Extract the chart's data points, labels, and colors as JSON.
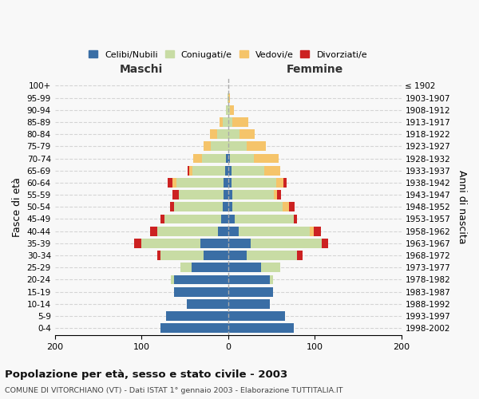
{
  "age_groups": [
    "100+",
    "95-99",
    "90-94",
    "85-89",
    "80-84",
    "75-79",
    "70-74",
    "65-69",
    "60-64",
    "55-59",
    "50-54",
    "45-49",
    "40-44",
    "35-39",
    "30-34",
    "25-29",
    "20-24",
    "15-19",
    "10-14",
    "5-9",
    "0-4"
  ],
  "birth_years": [
    "≤ 1902",
    "1903-1907",
    "1908-1912",
    "1913-1917",
    "1918-1922",
    "1923-1927",
    "1928-1932",
    "1933-1937",
    "1938-1942",
    "1943-1947",
    "1948-1952",
    "1953-1957",
    "1958-1962",
    "1963-1967",
    "1968-1972",
    "1973-1977",
    "1978-1982",
    "1983-1987",
    "1988-1992",
    "1993-1997",
    "1998-2002"
  ],
  "maschi_celibi": [
    0,
    0,
    0,
    0,
    0,
    0,
    2,
    3,
    5,
    5,
    6,
    8,
    12,
    32,
    28,
    42,
    62,
    62,
    48,
    72,
    78
  ],
  "maschi_coniugati": [
    0,
    1,
    2,
    6,
    13,
    20,
    28,
    38,
    55,
    52,
    56,
    65,
    70,
    68,
    50,
    13,
    4,
    0,
    0,
    0,
    0
  ],
  "maschi_vedovi": [
    0,
    0,
    0,
    4,
    8,
    8,
    10,
    4,
    4,
    0,
    0,
    0,
    0,
    0,
    0,
    0,
    0,
    0,
    0,
    0,
    0
  ],
  "maschi_divorziati": [
    0,
    0,
    0,
    0,
    0,
    0,
    0,
    2,
    6,
    7,
    5,
    5,
    8,
    8,
    4,
    0,
    0,
    0,
    0,
    0,
    0
  ],
  "femmine_nubili": [
    0,
    0,
    0,
    0,
    0,
    0,
    2,
    4,
    4,
    5,
    5,
    8,
    12,
    26,
    22,
    38,
    48,
    52,
    48,
    66,
    76
  ],
  "femmine_coniugate": [
    0,
    0,
    2,
    5,
    13,
    22,
    28,
    38,
    52,
    48,
    58,
    68,
    82,
    82,
    58,
    22,
    4,
    0,
    0,
    0,
    0
  ],
  "femmine_vedove": [
    0,
    2,
    5,
    18,
    18,
    22,
    28,
    18,
    8,
    4,
    7,
    0,
    5,
    0,
    0,
    0,
    0,
    0,
    0,
    0,
    0
  ],
  "femmine_divorziate": [
    0,
    0,
    0,
    0,
    0,
    0,
    0,
    0,
    4,
    4,
    7,
    4,
    8,
    8,
    6,
    0,
    0,
    0,
    0,
    0,
    0
  ],
  "colors": {
    "celibi": "#3a6ea5",
    "coniugati": "#c8dca4",
    "vedovi": "#f5c46a",
    "divorziati": "#cc2222"
  },
  "legend_labels": [
    "Celibi/Nubili",
    "Coniugati/e",
    "Vedovi/e",
    "Divorziati/e"
  ],
  "title": "Popolazione per età, sesso e stato civile - 2003",
  "subtitle": "COMUNE DI VITORCHIANO (VT) - Dati ISTAT 1° gennaio 2003 - Elaborazione TUTTITALIA.IT",
  "ylabel_left": "Fasce di età",
  "ylabel_right": "Anni di nascita",
  "label_maschi": "Maschi",
  "label_femmine": "Femmine",
  "bg_color": "#f8f8f8",
  "grid_color": "#cccccc"
}
